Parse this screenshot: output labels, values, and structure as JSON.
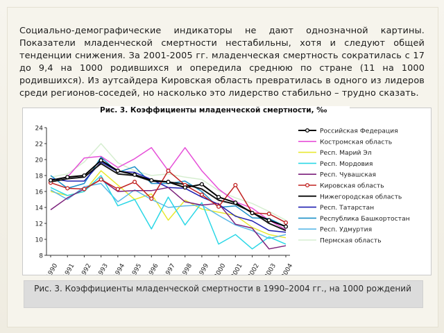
{
  "slide": {
    "paragraph": "Социально-демографические индикаторы не дают однозначной картины. Показатели младенческой смертности нестабильны, хотя и следуют общей тенденции снижения. За 2001-2005 гг. младенческая смертность сократилась с 17 до 9,4 на 1000 родившихся и опередила среднюю по стране (11 на 1000 родившихся). Из аутсайдера Кировская область превратилась в одного из лидеров среди регионов-соседей, но насколько это лидерство стабильно – трудно сказать.",
    "caption": "Рис. 3. Коэффициенты младенческой смертности в 1990–2004 гг., на 1000 рождений"
  },
  "chart_data": {
    "type": "line",
    "title": "Рис. 3. Коэффициенты младенческой смертности, ‰",
    "x": [
      "1990",
      "1991",
      "1992",
      "1993",
      "1994",
      "1995",
      "1996",
      "1997",
      "1998",
      "1999",
      "2000",
      "2001",
      "2002",
      "2003",
      "2004"
    ],
    "ylim": [
      8,
      24
    ],
    "yticks": [
      8,
      10,
      12,
      14,
      16,
      18,
      20,
      22,
      24
    ],
    "grid": false,
    "legend_position": "right",
    "series": [
      {
        "name": "Российская Федерация",
        "color": "#000000",
        "marker": "circle",
        "values": [
          17.4,
          17.8,
          18.0,
          19.9,
          18.6,
          18.1,
          17.4,
          17.2,
          16.5,
          16.9,
          15.3,
          14.6,
          13.3,
          12.4,
          11.6
        ]
      },
      {
        "name": "Костромская область",
        "color": "#e64fd8",
        "values": [
          17.4,
          17.8,
          20.2,
          20.4,
          19.0,
          20.1,
          21.5,
          18.6,
          21.5,
          18.6,
          16.3,
          14.7,
          13.9,
          12.4,
          11.2
        ]
      },
      {
        "name": "Респ. Марий Эл",
        "color": "#e8e830",
        "values": [
          16.0,
          15.5,
          16.0,
          18.6,
          16.8,
          15.0,
          15.7,
          12.4,
          14.9,
          13.8,
          13.4,
          13.0,
          11.5,
          10.6,
          10.2
        ]
      },
      {
        "name": "Респ. Мордовия",
        "color": "#2ad7e6",
        "values": [
          16.5,
          15.5,
          16.0,
          18.0,
          14.2,
          15.0,
          11.3,
          15.3,
          11.8,
          14.6,
          9.4,
          10.6,
          8.8,
          10.3,
          9.4
        ]
      },
      {
        "name": "Респ. Чувашская",
        "color": "#7a1f7a",
        "values": [
          13.7,
          15.2,
          16.3,
          17.5,
          16.0,
          16.1,
          16.1,
          16.5,
          14.7,
          14.3,
          14.5,
          11.9,
          11.4,
          8.8,
          9.2
        ]
      },
      {
        "name": "Кировская область",
        "color": "#c0201f",
        "marker": "circle",
        "values": [
          17.1,
          16.4,
          16.3,
          17.5,
          16.3,
          17.2,
          15.1,
          18.6,
          16.8,
          15.6,
          14.1,
          16.8,
          13.3,
          13.2,
          12.1
        ]
      },
      {
        "name": "Нижегородская область",
        "color": "#161616",
        "values": [
          17.2,
          17.6,
          17.8,
          19.5,
          18.2,
          18.0,
          17.3,
          17.2,
          16.9,
          16.3,
          14.9,
          14.4,
          13.4,
          12.0,
          11.1
        ]
      },
      {
        "name": "Респ. Татарстан",
        "color": "#1e1eb0",
        "values": [
          17.6,
          17.3,
          17.3,
          19.7,
          18.5,
          18.4,
          17.5,
          16.5,
          16.4,
          15.3,
          14.4,
          12.9,
          12.3,
          11.1,
          10.9
        ]
      },
      {
        "name": "Республика Башкортостан",
        "color": "#1a8fc8",
        "values": [
          18.0,
          16.4,
          17.0,
          20.3,
          18.4,
          19.1,
          17.0,
          17.0,
          17.3,
          16.0,
          14.0,
          14.2,
          12.7,
          12.6,
          11.6
        ]
      },
      {
        "name": "Респ. Удмуртия",
        "color": "#5ab9e8",
        "values": [
          16.2,
          15.0,
          16.6,
          17.0,
          14.7,
          16.2,
          15.0,
          14.0,
          14.2,
          14.3,
          13.0,
          11.8,
          11.1,
          10.1,
          10.6
        ]
      },
      {
        "name": "Пермская область",
        "color": "#d6eed0",
        "values": [
          17.8,
          18.2,
          19.7,
          22.0,
          19.6,
          18.6,
          18.0,
          18.2,
          17.8,
          17.5,
          16.1,
          15.2,
          14.5,
          13.5,
          12.4
        ]
      }
    ]
  }
}
